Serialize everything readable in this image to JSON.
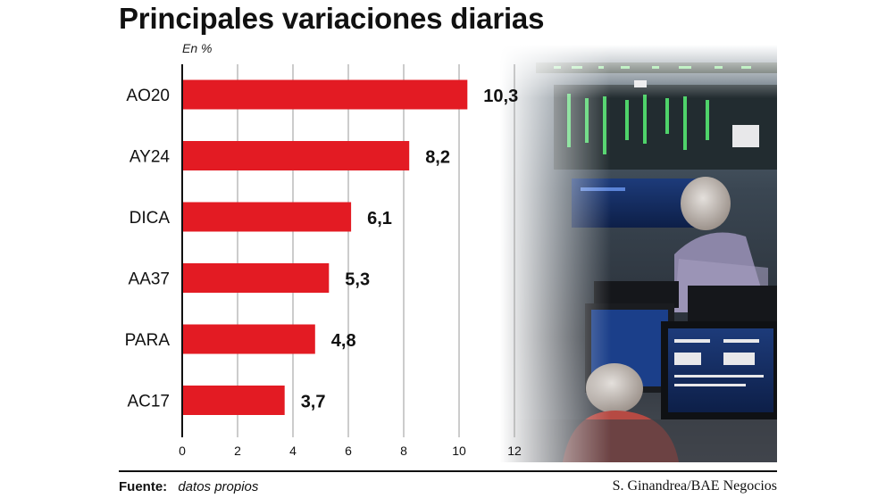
{
  "title": "Principales variaciones diarias",
  "unit_label": "En %",
  "source_label": "Fuente:",
  "source_text": "datos propios",
  "credit": "S. Ginandrea/BAE Negocios",
  "colors": {
    "bar": "#e31b23",
    "text": "#111111",
    "axis": "#111111",
    "grid": "#9a9a9a"
  },
  "chart_data": {
    "type": "bar",
    "orientation": "horizontal",
    "categories": [
      "AO20",
      "AY24",
      "DICA",
      "AA37",
      "PARA",
      "AC17"
    ],
    "values": [
      10.3,
      8.2,
      6.1,
      5.3,
      4.8,
      3.7
    ],
    "value_labels": [
      "10,3",
      "8,2",
      "6,1",
      "5,3",
      "4,8",
      "3,7"
    ],
    "xticks": [
      0,
      2,
      4,
      6,
      8,
      10,
      12
    ],
    "xlim": [
      0,
      12
    ],
    "grid": true
  }
}
